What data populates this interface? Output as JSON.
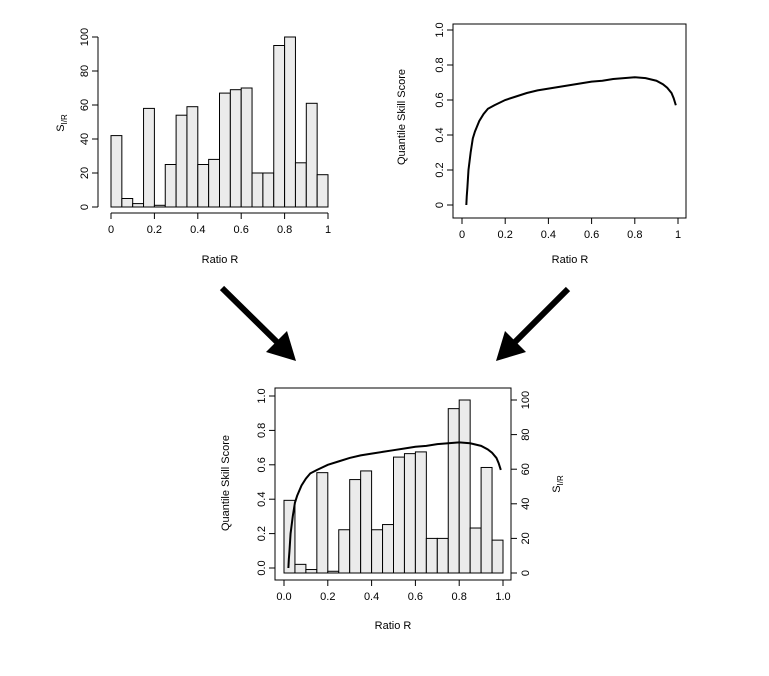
{
  "chart_data": [
    {
      "type": "bar",
      "xlabel": "Ratio R",
      "ylabel_main": "S",
      "ylabel_sub": "I/R",
      "xlim": [
        0,
        1
      ],
      "ylim": [
        0,
        100
      ],
      "xticks": [
        "0",
        "0.2",
        "0.4",
        "0.6",
        "0.8",
        "1"
      ],
      "yticks": [
        "0",
        "20",
        "40",
        "60",
        "80",
        "100"
      ],
      "bin_width": 0.05,
      "x": [
        0.025,
        0.075,
        0.125,
        0.175,
        0.225,
        0.275,
        0.325,
        0.375,
        0.425,
        0.475,
        0.525,
        0.575,
        0.625,
        0.675,
        0.725,
        0.775,
        0.825,
        0.875,
        0.925,
        0.975
      ],
      "values": [
        42,
        5,
        2,
        58,
        1,
        25,
        54,
        59,
        25,
        28,
        67,
        69,
        70,
        20,
        20,
        95,
        100,
        26,
        61,
        19
      ],
      "fill": "#ebebeb"
    },
    {
      "type": "line",
      "xlabel": "Ratio R",
      "ylabel": "Quantile Skill Score",
      "xlim": [
        0,
        1
      ],
      "ylim": [
        0,
        1
      ],
      "xticks": [
        "0",
        "0.2",
        "0.4",
        "0.6",
        "0.8",
        "1"
      ],
      "yticks": [
        "0",
        "0.2",
        "0.4",
        "0.6",
        "0.8",
        "1.0"
      ],
      "x": [
        0.02,
        0.022,
        0.025,
        0.03,
        0.04,
        0.05,
        0.06,
        0.08,
        0.1,
        0.12,
        0.15,
        0.2,
        0.25,
        0.3,
        0.35,
        0.4,
        0.45,
        0.5,
        0.55,
        0.6,
        0.65,
        0.7,
        0.75,
        0.8,
        0.85,
        0.9,
        0.93,
        0.95,
        0.97,
        0.98,
        0.99
      ],
      "y": [
        0.0,
        0.05,
        0.1,
        0.2,
        0.3,
        0.38,
        0.42,
        0.48,
        0.52,
        0.55,
        0.57,
        0.6,
        0.62,
        0.64,
        0.655,
        0.665,
        0.675,
        0.685,
        0.695,
        0.705,
        0.71,
        0.72,
        0.725,
        0.73,
        0.725,
        0.71,
        0.69,
        0.67,
        0.64,
        0.61,
        0.57
      ]
    },
    {
      "type": "bar+line",
      "xlabel": "Ratio R",
      "ylabel_left": "Quantile Skill Score",
      "ylabel_right_main": "S",
      "ylabel_right_sub": "I/R",
      "xlim": [
        0,
        1
      ],
      "ylim_left": [
        0,
        1
      ],
      "ylim_right": [
        0,
        100
      ],
      "xticks": [
        "0.0",
        "0.2",
        "0.4",
        "0.6",
        "0.8",
        "1.0"
      ],
      "yticks_left": [
        "0.0",
        "0.2",
        "0.4",
        "0.6",
        "0.8",
        "1.0"
      ],
      "yticks_right": [
        "0",
        "20",
        "40",
        "60",
        "80",
        "100"
      ]
    }
  ]
}
